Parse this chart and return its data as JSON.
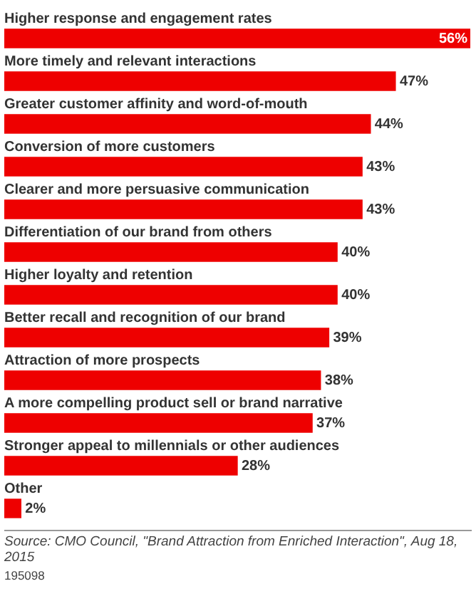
{
  "chart_data": {
    "type": "bar",
    "orientation": "horizontal",
    "categories": [
      "Higher response and engagement rates",
      "More timely and relevant interactions",
      "Greater customer affinity and word-of-mouth",
      "Conversion of more customers",
      "Clearer and more persuasive communication",
      "Differentiation of our brand from others",
      "Higher loyalty and retention",
      "Better recall and recognition of our brand",
      "Attraction of more prospects",
      "A more compelling product sell or brand narrative",
      "Stronger appeal to millennials or other audiences",
      "Other"
    ],
    "values": [
      56,
      47,
      44,
      43,
      43,
      40,
      40,
      39,
      38,
      37,
      28,
      2
    ],
    "value_labels": [
      "56%",
      "47%",
      "44%",
      "43%",
      "43%",
      "40%",
      "40%",
      "39%",
      "38%",
      "37%",
      "28%",
      "2%"
    ],
    "color": "#ee0000",
    "legend": false,
    "tick_labels": false,
    "annotations": [
      "Source: CMO Council, \"Brand Attraction from Enriched Interaction\", Aug 18, 2015",
      "195098"
    ]
  }
}
